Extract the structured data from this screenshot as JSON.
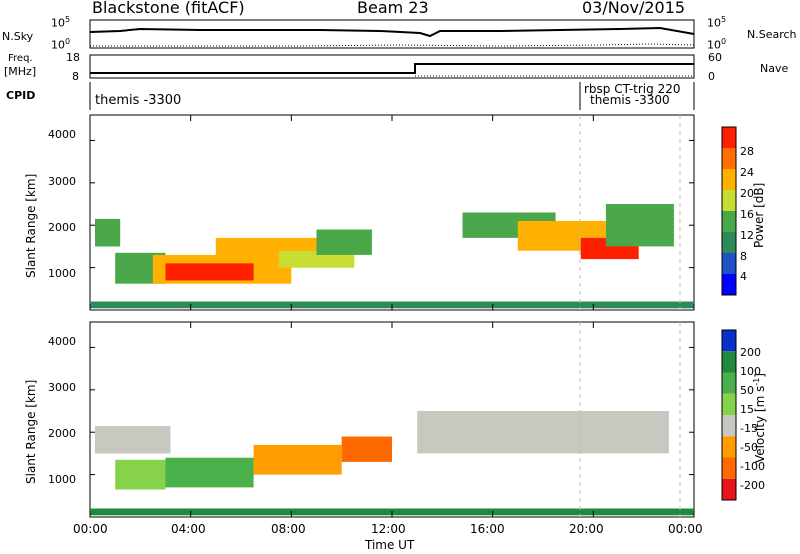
{
  "header": {
    "station": "Blackstone (fitACF)",
    "beam": "Beam 23",
    "date": "03/Nov/2015"
  },
  "status_labels": {
    "nsky": "N.Sky",
    "nsearch": "N.Search",
    "freq_line1": "Freq.",
    "freq_line2": "[MHz]",
    "nave": "Nave",
    "cpid": "CPID"
  },
  "status_ticks": {
    "noise_top": "10^5",
    "noise_bottom": "10^0",
    "freq_top": "18",
    "freq_bottom": "8",
    "nave_top": "60",
    "nave_bottom": "0"
  },
  "cpid_entries": [
    "themis -3300",
    "rbsp CT-trig 220",
    "themis -3300"
  ],
  "colors": {
    "grey": "#c8c8c0",
    "frame": "#000000"
  },
  "chart_data": [
    {
      "type": "heatmap",
      "name": "power",
      "ylabel": "Slant Range [km]",
      "ytick_labels": [
        "1000",
        "2000",
        "3000",
        "4000"
      ],
      "ylim": [
        0,
        4600
      ],
      "xlim_hours": [
        0,
        24
      ],
      "colorbar": {
        "label": "Power [dB]",
        "tick_labels": [
          "4",
          "8",
          "12",
          "16",
          "20",
          "24",
          "28"
        ],
        "range": [
          0,
          32
        ],
        "colors": [
          "#0000ff",
          "#2050c8",
          "#2e8b57",
          "#4aa84a",
          "#c8dc32",
          "#ffb000",
          "#ff7000",
          "#ff2000"
        ]
      },
      "regions": [
        {
          "t0": 0.2,
          "t1": 1.2,
          "r0": 1500,
          "r1": 2150,
          "lev": 3
        },
        {
          "t0": 1.0,
          "t1": 3.0,
          "r0": 620,
          "r1": 1350,
          "lev": 3
        },
        {
          "t0": 2.5,
          "t1": 8.0,
          "r0": 620,
          "r1": 1300,
          "lev": 5
        },
        {
          "t0": 3.0,
          "t1": 6.5,
          "r0": 700,
          "r1": 1100,
          "lev": 7
        },
        {
          "t0": 5.0,
          "t1": 9.5,
          "r0": 1300,
          "r1": 1700,
          "lev": 5
        },
        {
          "t0": 7.5,
          "t1": 10.5,
          "r0": 1000,
          "r1": 1400,
          "lev": 4
        },
        {
          "t0": 9.0,
          "t1": 11.2,
          "r0": 1300,
          "r1": 1900,
          "lev": 3
        },
        {
          "t0": 14.8,
          "t1": 18.5,
          "r0": 1700,
          "r1": 2300,
          "lev": 3
        },
        {
          "t0": 17.0,
          "t1": 20.5,
          "r0": 1400,
          "r1": 2100,
          "lev": 5
        },
        {
          "t0": 19.5,
          "t1": 21.8,
          "r0": 1200,
          "r1": 1700,
          "lev": 7
        },
        {
          "t0": 20.5,
          "t1": 23.2,
          "r0": 1500,
          "r1": 2500,
          "lev": 3
        },
        {
          "t0": 0.0,
          "t1": 24.0,
          "r0": 40,
          "r1": 200,
          "lev": 2
        }
      ]
    },
    {
      "type": "heatmap",
      "name": "velocity",
      "ylabel": "Slant Range [km]",
      "xlabel": "Time UT",
      "ytick_labels": [
        "1000",
        "2000",
        "3000",
        "4000"
      ],
      "xtick_labels": [
        "00:00",
        "04:00",
        "08:00",
        "12:00",
        "16:00",
        "20:00",
        "00:00"
      ],
      "ylim": [
        0,
        4600
      ],
      "xlim_hours": [
        0,
        24
      ],
      "colorbar": {
        "label": "Velocity [m s^-1]",
        "tick_labels": [
          "200",
          "100",
          "50",
          "15",
          "-15",
          "-50",
          "-100",
          "-200"
        ],
        "range": [
          -250,
          250
        ],
        "colors": [
          "#0a2ec8",
          "#1f8a3c",
          "#49b04a",
          "#86d24a",
          "#c8c8c0",
          "#ff9c00",
          "#ff6a00",
          "#e8141a"
        ]
      },
      "regions": [
        {
          "t0": 0.2,
          "t1": 3.2,
          "r0": 1500,
          "r1": 2150,
          "lev": 4
        },
        {
          "t0": 1.0,
          "t1": 3.0,
          "r0": 650,
          "r1": 1350,
          "lev": 3
        },
        {
          "t0": 3.0,
          "t1": 6.5,
          "r0": 700,
          "r1": 1400,
          "lev": 2
        },
        {
          "t0": 6.5,
          "t1": 10.0,
          "r0": 1000,
          "r1": 1700,
          "lev": 5
        },
        {
          "t0": 10.0,
          "t1": 12.0,
          "r0": 1300,
          "r1": 1900,
          "lev": 6
        },
        {
          "t0": 13.0,
          "t1": 23.0,
          "r0": 1500,
          "r1": 2500,
          "lev": 4
        },
        {
          "t0": 0.0,
          "t1": 24.0,
          "r0": 40,
          "r1": 200,
          "lev": 1
        }
      ]
    }
  ]
}
